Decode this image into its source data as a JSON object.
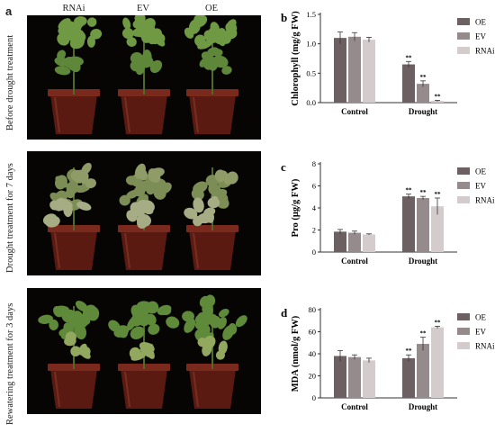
{
  "figure": {
    "panel_a": {
      "letter": "a",
      "columns": [
        "RNAi",
        "EV",
        "OE"
      ],
      "rows": [
        {
          "label": "Before drought treatment",
          "condition": "healthy"
        },
        {
          "label": "Drought treatment for 7 days",
          "condition": "wilted"
        },
        {
          "label": "Rewatering treatment for 3 days",
          "condition": "recovered"
        }
      ]
    },
    "colors": {
      "OE": "#6d6062",
      "EV": "#958b8d",
      "RNAi": "#d4cbcd",
      "axis": "#333333"
    }
  },
  "chart_data": [
    {
      "panel": "b",
      "type": "bar",
      "ylabel": "Chlorophyll (mg/g FW)",
      "categories": [
        "Control",
        "Drought"
      ],
      "ylim": [
        0,
        1.5
      ],
      "yticks": [
        "0.0",
        "0.5",
        "1.0",
        "1.5"
      ],
      "series": [
        {
          "name": "OE",
          "values": [
            1.1,
            0.65
          ],
          "errors": [
            0.1,
            0.05
          ],
          "marks": [
            "",
            "**"
          ]
        },
        {
          "name": "EV",
          "values": [
            1.12,
            0.32
          ],
          "errors": [
            0.07,
            0.05
          ],
          "marks": [
            "",
            "**"
          ]
        },
        {
          "name": "RNAi",
          "values": [
            1.07,
            0.03
          ],
          "errors": [
            0.04,
            0.01
          ],
          "marks": [
            "",
            "**"
          ]
        }
      ]
    },
    {
      "panel": "c",
      "type": "bar",
      "ylabel": "Pro (μg/g FW)",
      "categories": [
        "Control",
        "Drought"
      ],
      "ylim": [
        0,
        8
      ],
      "yticks": [
        "0",
        "2",
        "4",
        "6",
        "8"
      ],
      "series": [
        {
          "name": "OE",
          "values": [
            1.85,
            5.05
          ],
          "errors": [
            0.2,
            0.2
          ],
          "marks": [
            "",
            "**"
          ]
        },
        {
          "name": "EV",
          "values": [
            1.75,
            4.9
          ],
          "errors": [
            0.15,
            0.15
          ],
          "marks": [
            "",
            "**"
          ]
        },
        {
          "name": "RNAi",
          "values": [
            1.6,
            4.15
          ],
          "errors": [
            0.05,
            0.75
          ],
          "marks": [
            "",
            "**"
          ]
        }
      ]
    },
    {
      "panel": "d",
      "type": "bar",
      "ylabel": "MDA (nmol/g FW)",
      "categories": [
        "Control",
        "Drought"
      ],
      "ylim": [
        0,
        80
      ],
      "yticks": [
        "0",
        "20",
        "40",
        "60",
        "80"
      ],
      "series": [
        {
          "name": "OE",
          "values": [
            38,
            36
          ],
          "errors": [
            5,
            3
          ],
          "marks": [
            "",
            "**"
          ]
        },
        {
          "name": "EV",
          "values": [
            37,
            49
          ],
          "errors": [
            2,
            6
          ],
          "marks": [
            "",
            "**"
          ]
        },
        {
          "name": "RNAi",
          "values": [
            34,
            64
          ],
          "errors": [
            2,
            1
          ],
          "marks": [
            "",
            "**"
          ]
        }
      ]
    }
  ]
}
